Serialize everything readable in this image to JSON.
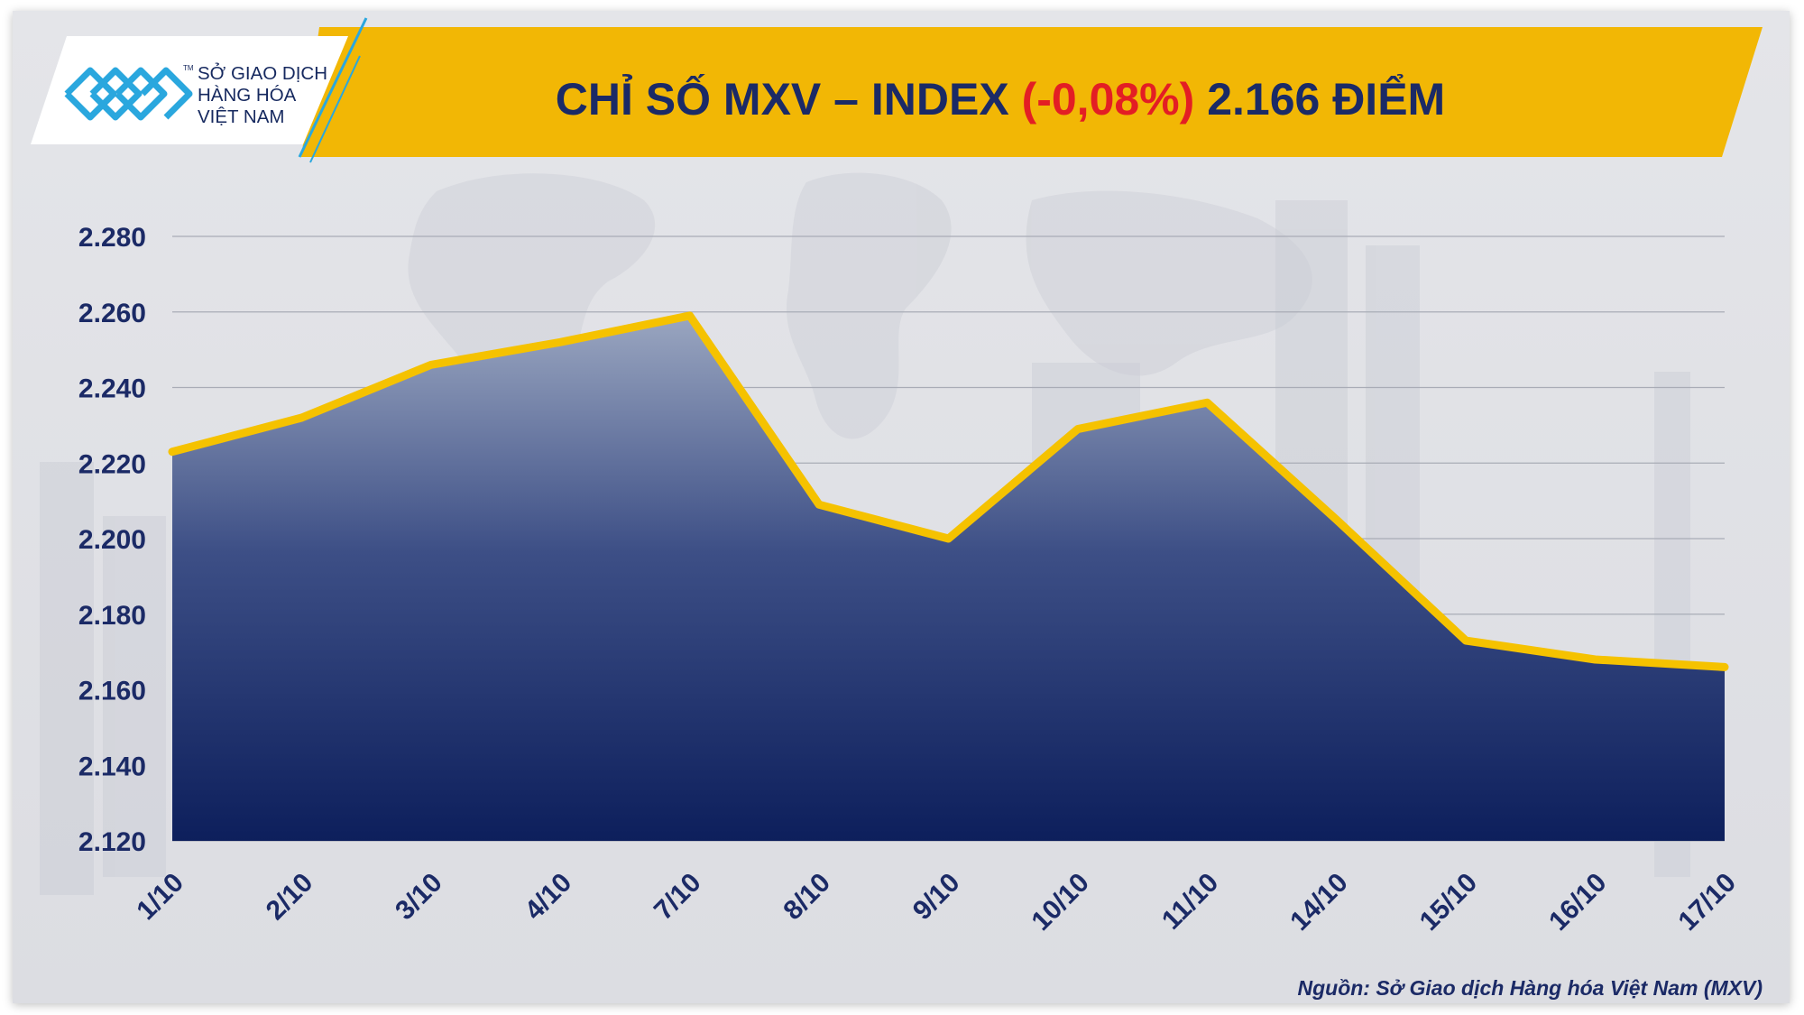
{
  "header": {
    "logo_lines": [
      "SỞ GIAO DỊCH",
      "HÀNG HÓA",
      "VIỆT NAM"
    ],
    "logo_tm": "TM",
    "title_part1": "CHỈ SỐ MXV – INDEX ",
    "title_change": "(-0,08%)",
    "title_part2": " 2.166 ĐIỂM"
  },
  "colors": {
    "banner": "#f2b705",
    "title_text": "#1b2a66",
    "negative": "#e31e24",
    "line": "#f5c200",
    "area_top": "#9aa6c0",
    "area_bottom": "#0d1f5c",
    "axis_text": "#1b2a66"
  },
  "chart_data": {
    "type": "area",
    "title": "",
    "xlabel": "",
    "ylabel": "",
    "categories": [
      "1/10",
      "2/10",
      "3/10",
      "4/10",
      "7/10",
      "8/10",
      "9/10",
      "10/10",
      "11/10",
      "14/10",
      "15/10",
      "16/10",
      "17/10"
    ],
    "series": [
      {
        "values": [
          2223,
          2232,
          2246,
          2252,
          2259,
          2209,
          2200,
          2229,
          2236,
          2205,
          2173,
          2168,
          2166
        ]
      }
    ],
    "ylim": [
      2120,
      2280
    ],
    "yticks": [
      2120,
      2140,
      2160,
      2180,
      2200,
      2220,
      2240,
      2260,
      2280
    ],
    "ytick_labels": [
      "2.120",
      "2.140",
      "2.160",
      "2.180",
      "2.200",
      "2.220",
      "2.240",
      "2.260",
      "2.280"
    ],
    "grid": true,
    "legend": "none"
  },
  "footer": {
    "source": "Nguồn: Sở Giao dịch Hàng hóa Việt Nam (MXV)"
  }
}
